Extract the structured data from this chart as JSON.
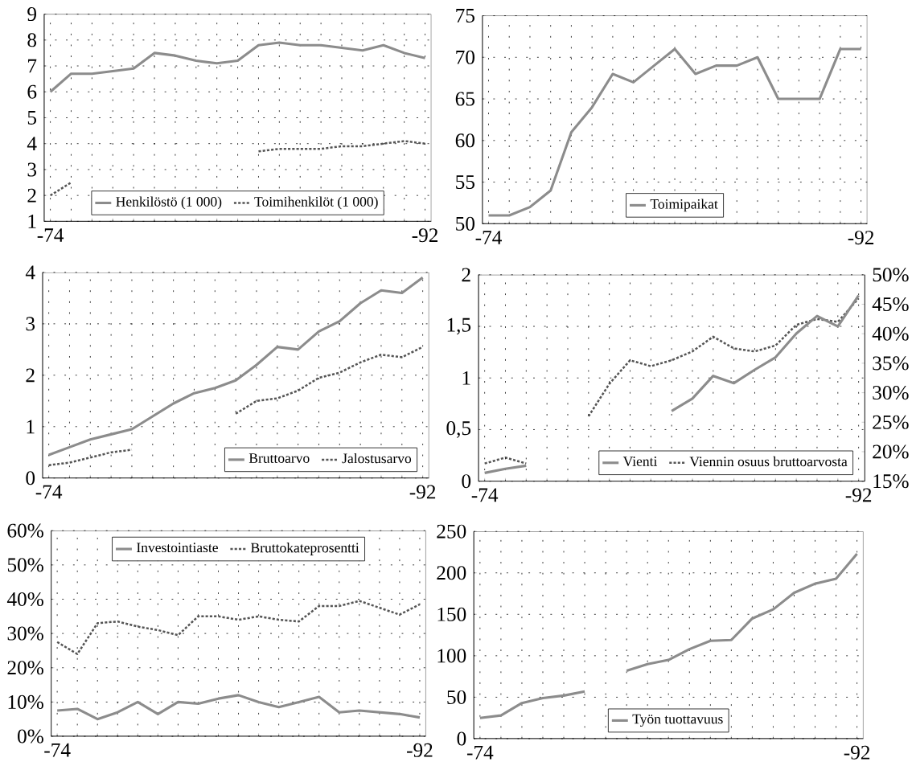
{
  "chart_data": [
    {
      "type": "line",
      "categories": [
        "-74",
        null,
        null,
        null,
        null,
        null,
        null,
        null,
        null,
        null,
        null,
        null,
        null,
        null,
        null,
        null,
        null,
        null,
        "-92"
      ],
      "ylim": [
        1,
        9
      ],
      "yticks": [
        1,
        2,
        3,
        4,
        5,
        6,
        7,
        8,
        9
      ],
      "grid": true,
      "legend": "bottom",
      "marker": "none",
      "series": [
        {
          "name": "Henkilöstö (1 000)",
          "color": "#8c8c8c",
          "line_style": "solid",
          "values": [
            6.0,
            6.7,
            6.7,
            6.8,
            6.9,
            7.5,
            7.4,
            7.2,
            7.1,
            7.2,
            7.8,
            7.9,
            7.8,
            7.8,
            7.7,
            7.6,
            7.8,
            7.5,
            7.3
          ]
        },
        {
          "name": "Toimihenkilöt (1 000)",
          "color": "#555555",
          "line_style": "dotted",
          "values": [
            2.0,
            2.5,
            null,
            null,
            null,
            null,
            null,
            null,
            null,
            null,
            3.7,
            3.8,
            3.8,
            3.8,
            3.9,
            3.9,
            4.0,
            4.1,
            4.0
          ]
        }
      ]
    },
    {
      "type": "line",
      "categories": [
        "-74",
        null,
        null,
        null,
        null,
        null,
        null,
        null,
        null,
        null,
        null,
        null,
        null,
        null,
        null,
        null,
        null,
        null,
        "-92"
      ],
      "ylim": [
        50,
        75
      ],
      "yticks": [
        50,
        55,
        60,
        65,
        70,
        75
      ],
      "grid": true,
      "legend": "bottom",
      "marker": "none",
      "series": [
        {
          "name": "Toimipaikat",
          "color": "#8c8c8c",
          "line_style": "solid",
          "values": [
            51,
            51,
            52,
            54,
            61,
            64,
            68,
            67,
            69,
            71,
            68,
            69,
            69,
            70,
            65,
            65,
            65,
            71,
            71
          ]
        }
      ]
    },
    {
      "type": "line",
      "categories": [
        "-74",
        null,
        null,
        null,
        null,
        null,
        null,
        null,
        null,
        null,
        null,
        null,
        null,
        null,
        null,
        null,
        null,
        null,
        "-92"
      ],
      "ylim": [
        0,
        4
      ],
      "yticks": [
        0,
        1,
        2,
        3,
        4
      ],
      "grid": true,
      "legend": "bottom right",
      "marker": "none",
      "series": [
        {
          "name": "Bruttoarvo",
          "color": "#8c8c8c",
          "line_style": "solid",
          "values": [
            0.45,
            0.6,
            0.75,
            0.85,
            0.95,
            1.2,
            1.45,
            1.65,
            1.75,
            1.9,
            2.2,
            2.55,
            2.5,
            2.85,
            3.05,
            3.4,
            3.65,
            3.6,
            3.9
          ]
        },
        {
          "name": "Jalostusarvo",
          "color": "#555555",
          "line_style": "dotted",
          "values": [
            0.25,
            0.3,
            0.4,
            0.5,
            0.55,
            null,
            null,
            null,
            null,
            1.25,
            1.5,
            1.55,
            1.7,
            1.95,
            2.05,
            2.25,
            2.4,
            2.35,
            2.55
          ]
        }
      ]
    },
    {
      "type": "line",
      "categories": [
        "-74",
        null,
        null,
        null,
        null,
        null,
        null,
        null,
        null,
        null,
        null,
        null,
        null,
        null,
        null,
        null,
        null,
        null,
        "-92"
      ],
      "ylim": [
        0,
        2
      ],
      "yticks": [
        0,
        {
          "value": 0.5,
          "label": "0,5"
        },
        1,
        {
          "value": 1.5,
          "label": "1,5"
        },
        2
      ],
      "y2lim": [
        15,
        50
      ],
      "y2ticks": [
        {
          "value": 15,
          "label": "15%"
        },
        {
          "value": 20,
          "label": "20%"
        },
        {
          "value": 25,
          "label": "25%"
        },
        {
          "value": 30,
          "label": "30%"
        },
        {
          "value": 35,
          "label": "35%"
        },
        {
          "value": 40,
          "label": "40%"
        },
        {
          "value": 45,
          "label": "45%"
        },
        {
          "value": 50,
          "label": "50%"
        }
      ],
      "grid": true,
      "legend": "bottom right",
      "marker": "none",
      "series": [
        {
          "name": "Vienti",
          "color": "#8c8c8c",
          "line_style": "solid",
          "values": [
            0.08,
            0.12,
            0.15,
            null,
            null,
            null,
            null,
            null,
            null,
            0.68,
            0.8,
            1.02,
            0.95,
            1.08,
            1.2,
            1.43,
            1.6,
            1.5,
            1.8
          ]
        },
        {
          "name": "Viennin osuus bruttoarvosta",
          "color": "#555555",
          "line_style": "dotted",
          "axis": "y2",
          "values": [
            18,
            19,
            18,
            null,
            null,
            26,
            31.5,
            35.5,
            34.5,
            35.5,
            37,
            39.5,
            37.5,
            37,
            38,
            41.5,
            42.5,
            42,
            46
          ]
        }
      ]
    },
    {
      "type": "line",
      "categories": [
        "-74",
        null,
        null,
        null,
        null,
        null,
        null,
        null,
        null,
        null,
        null,
        null,
        null,
        null,
        null,
        null,
        null,
        null,
        "-92"
      ],
      "ylim": [
        0,
        60
      ],
      "yticks": [
        {
          "value": 0,
          "label": "0%"
        },
        {
          "value": 10,
          "label": "10%"
        },
        {
          "value": 20,
          "label": "20%"
        },
        {
          "value": 30,
          "label": "30%"
        },
        {
          "value": 40,
          "label": "40%"
        },
        {
          "value": 50,
          "label": "50%"
        },
        {
          "value": 60,
          "label": "60%"
        }
      ],
      "grid": true,
      "legend": "top",
      "marker": "none",
      "series": [
        {
          "name": "Investointiaste",
          "color": "#8c8c8c",
          "line_style": "solid",
          "values": [
            7.5,
            8,
            5,
            7,
            10,
            6.5,
            10,
            9.5,
            11,
            12,
            10,
            8.5,
            10,
            11.5,
            7,
            7.5,
            7,
            6.5,
            5.5
          ]
        },
        {
          "name": "Bruttokateprosentti",
          "color": "#555555",
          "line_style": "dotted",
          "values": [
            27.5,
            24,
            33,
            33.5,
            32,
            31,
            29.5,
            35,
            35,
            34,
            35,
            34,
            33.5,
            38,
            38,
            39.5,
            37.5,
            35.5,
            38.5
          ]
        }
      ]
    },
    {
      "type": "line",
      "categories": [
        "-74",
        null,
        null,
        null,
        null,
        null,
        null,
        null,
        null,
        null,
        null,
        null,
        null,
        null,
        null,
        null,
        null,
        null,
        "-92"
      ],
      "ylim": [
        0,
        250
      ],
      "yticks": [
        0,
        50,
        100,
        150,
        200,
        250
      ],
      "grid": true,
      "legend": "bottom",
      "marker": "none",
      "series": [
        {
          "name": "Työn tuottavuus",
          "color": "#8c8c8c",
          "line_style": "solid",
          "values": [
            25,
            28,
            43,
            49,
            52,
            57,
            null,
            82,
            90,
            95,
            108,
            118,
            119,
            145,
            156,
            176,
            187,
            193,
            223
          ]
        }
      ]
    }
  ]
}
